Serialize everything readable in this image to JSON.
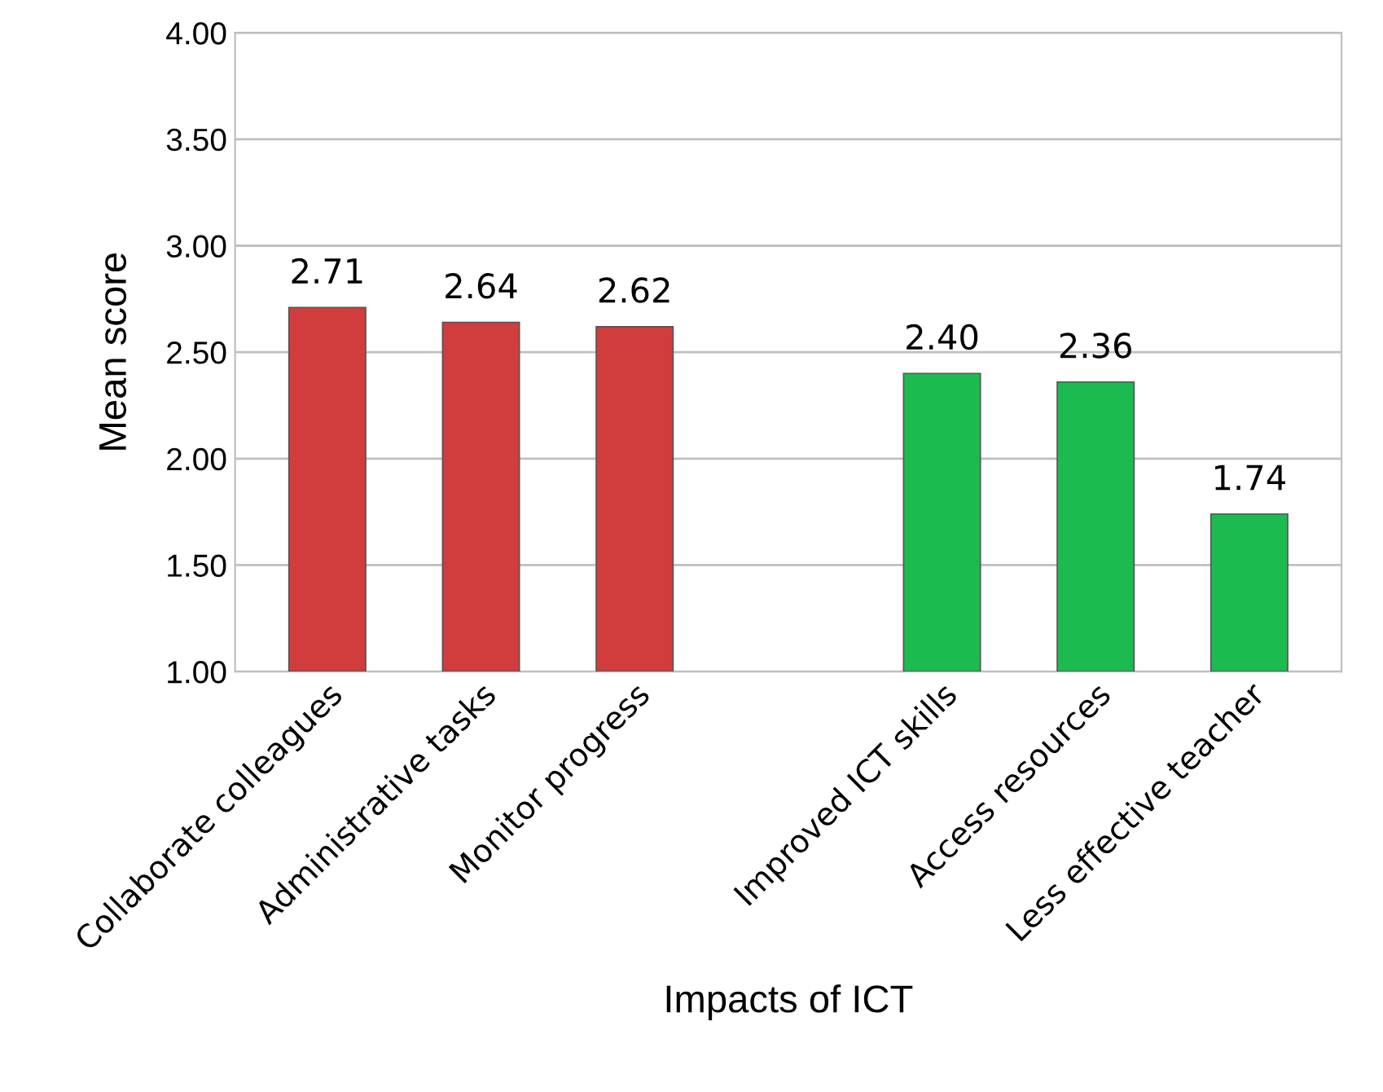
{
  "chart_data": {
    "type": "bar",
    "xlabel": "Impacts of ICT",
    "ylabel": "Mean score",
    "categories": [
      "Collaborate colleagues",
      "Administrative tasks",
      "Monitor progress",
      null,
      "Improved ICT skills",
      "Access resources",
      "Less effective teacher"
    ],
    "values": [
      2.71,
      2.64,
      2.62,
      null,
      2.4,
      2.36,
      1.74
    ],
    "colors": [
      "#d13c3c",
      "#d13c3c",
      "#d13c3c",
      "#808080",
      "#1cbb4f",
      "#1cbb4f",
      "#1cbb4f"
    ],
    "value_labels": [
      "2.71",
      "2.64",
      "2.62",
      null,
      "2.40",
      "2.36",
      "1.74"
    ],
    "ylim": [
      1.0,
      4.0
    ],
    "yticks": [
      {
        "value": 1.0,
        "label": "1.00"
      },
      {
        "value": 1.5,
        "label": "1.50"
      },
      {
        "value": 2.0,
        "label": "2.00"
      },
      {
        "value": 2.5,
        "label": "2.50"
      },
      {
        "value": 3.0,
        "label": "3.00"
      },
      {
        "value": 3.5,
        "label": "3.50"
      },
      {
        "value": 4.0,
        "label": "4.00"
      }
    ],
    "grid": "y",
    "legend": false
  }
}
